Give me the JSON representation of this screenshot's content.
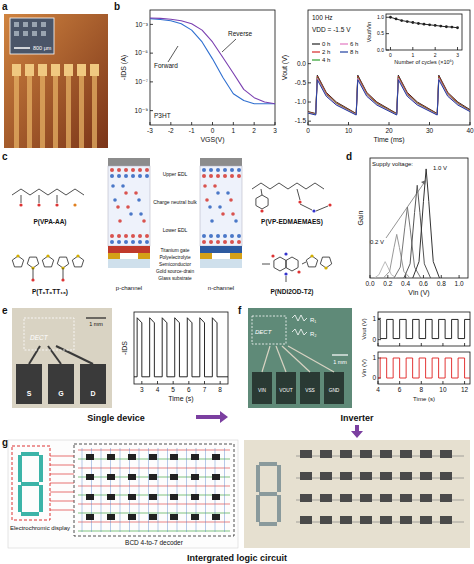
{
  "panel_labels": [
    "a",
    "b",
    "c",
    "d",
    "e",
    "f",
    "g"
  ],
  "photo_a": {
    "scale_bar": "800 μm"
  },
  "chart_data": [
    {
      "type": "line",
      "x_label": "VGS(V)",
      "y_label": "-IDS (A)",
      "log": "y",
      "xlim": [
        -3,
        3
      ],
      "xticks": [
        -3,
        -2,
        -1,
        0,
        1,
        2,
        3
      ],
      "ylim": [
        1e-10,
        0.01
      ],
      "yticks": [
        {
          "value": 0.001,
          "label": "10⁻³"
        },
        {
          "value": 1e-05,
          "label": "10⁻⁵"
        },
        {
          "value": 1e-07,
          "label": "10⁻⁷"
        },
        {
          "value": 1e-09,
          "label": "10⁻⁹"
        }
      ],
      "annotations": [
        "P3HT"
      ],
      "x": [
        -3,
        -2.5,
        -2,
        -1.5,
        -1,
        -0.5,
        0,
        0.5,
        1,
        1.5,
        2,
        2.5,
        3
      ],
      "series": [
        {
          "name": "Forward",
          "color": "#2f6fd0",
          "values": [
            0.0025,
            0.0022,
            0.0018,
            0.0011,
            0.0004,
            6e-05,
            4e-06,
            2e-07,
            1.5e-08,
            5e-09,
            3e-09,
            3e-09,
            3e-09
          ]
        },
        {
          "name": "Reverse",
          "color": "#7a3fb0",
          "values": [
            0.0028,
            0.0026,
            0.0023,
            0.0018,
            0.0011,
            0.0004,
            6e-05,
            5e-06,
            4e-07,
            3e-08,
            8e-09,
            4e-09,
            3e-09
          ]
        }
      ]
    },
    {
      "type": "line",
      "x_label": "Time (ms)",
      "y_label": "Vout (V)",
      "xlim": [
        0,
        40
      ],
      "xticks": [
        0,
        10,
        20,
        30,
        40
      ],
      "ylim": [
        -1.6,
        1.4
      ],
      "yticks": [
        -1.5,
        {
          "value": -1,
          "label": "-1.0"
        },
        -0.5,
        {
          "value": 0,
          "label": "0.0"
        }
      ],
      "annotations": [
        "100 Hz",
        "VDD = -1.5 V"
      ],
      "legend": "upper left",
      "x": [
        0,
        1.9,
        2.3,
        4.5,
        7,
        11.9,
        12.3,
        14.5,
        17,
        21.9,
        22.3,
        24.5,
        27,
        31.9,
        32.3,
        34.5,
        37,
        40
      ],
      "series": [
        {
          "name": "0 h",
          "color": "#222222",
          "values": [
            -1.25,
            -1.3,
            -0.3,
            -0.75,
            -1.0,
            -1.3,
            -0.3,
            -0.75,
            -1.0,
            -1.3,
            -0.3,
            -0.75,
            -1.0,
            -1.3,
            -0.3,
            -0.75,
            -1.0,
            -1.2
          ]
        },
        {
          "name": "2 h",
          "color": "#d62728",
          "values": [
            -1.26,
            -1.31,
            -0.33,
            -0.77,
            -1.02,
            -1.31,
            -0.33,
            -0.77,
            -1.02,
            -1.31,
            -0.33,
            -0.77,
            -1.02,
            -1.31,
            -0.33,
            -0.77,
            -1.02,
            -1.22
          ]
        },
        {
          "name": "4 h",
          "color": "#2ca02c",
          "values": [
            -1.27,
            -1.32,
            -0.36,
            -0.8,
            -1.04,
            -1.32,
            -0.36,
            -0.8,
            -1.04,
            -1.32,
            -0.36,
            -0.8,
            -1.04,
            -1.32,
            -0.36,
            -0.8,
            -1.04,
            -1.23
          ]
        },
        {
          "name": "6 h",
          "color": "#e377c2",
          "values": [
            -1.28,
            -1.33,
            -0.38,
            -0.82,
            -1.06,
            -1.33,
            -0.38,
            -0.82,
            -1.06,
            -1.33,
            -0.38,
            -0.82,
            -1.06,
            -1.33,
            -0.38,
            -0.82,
            -1.06,
            -1.24
          ]
        },
        {
          "name": "8 h",
          "color": "#1f3f9f",
          "values": [
            -1.29,
            -1.34,
            -0.42,
            -0.85,
            -1.08,
            -1.34,
            -0.42,
            -0.85,
            -1.08,
            -1.34,
            -0.42,
            -0.85,
            -1.08,
            -1.34,
            -0.42,
            -0.85,
            -1.08,
            -1.25
          ]
        }
      ]
    },
    {
      "type": "line",
      "marker": "circle",
      "color": "#222222",
      "x_label": "Number of cycles (×10⁶)",
      "y_label": "Vout/Vin",
      "xlim": [
        -0.2,
        3.2
      ],
      "xticks": [
        0,
        1,
        2,
        3
      ],
      "ylim": [
        0,
        1.1
      ],
      "yticks": [
        {
          "value": 0,
          "label": "0.0"
        },
        0.5,
        {
          "value": 1,
          "label": "1.0"
        }
      ],
      "x": [
        0,
        0.25,
        0.5,
        0.75,
        1,
        1.25,
        1.5,
        1.75,
        2,
        2.25,
        2.5,
        2.75,
        3
      ],
      "values": [
        1.0,
        0.95,
        0.9,
        0.87,
        0.84,
        0.81,
        0.79,
        0.77,
        0.75,
        0.73,
        0.71,
        0.7,
        0.68
      ]
    },
    {
      "type": "line",
      "x_label": "Vin (V)",
      "y_label": "Gain",
      "tick_labels": "x",
      "xlim": [
        0,
        1.1
      ],
      "xticks": [
        {
          "value": 0,
          "label": "0.0"
        },
        0.2,
        0.4,
        0.6,
        0.8,
        {
          "value": 1,
          "label": "1.0"
        }
      ],
      "ylim": [
        0,
        11
      ],
      "annotations": [
        "Supply voltage:",
        "0.2 V",
        "1.0 V"
      ],
      "series": [
        {
          "color": "#bbbbbb",
          "x": [
            0.05,
            0.1,
            0.14,
            0.17,
            0.2,
            0.24,
            0.3
          ],
          "values": [
            0,
            0.3,
            1.0,
            1.5,
            1.0,
            0.3,
            0
          ]
        },
        {
          "color": "#999999",
          "x": [
            0.15,
            0.22,
            0.27,
            0.3,
            0.33,
            0.38,
            0.45
          ],
          "values": [
            0,
            0.6,
            2.8,
            4.0,
            2.8,
            0.6,
            0
          ]
        },
        {
          "color": "#777777",
          "x": [
            0.27,
            0.34,
            0.39,
            0.42,
            0.45,
            0.5,
            0.57
          ],
          "values": [
            0,
            1,
            4.6,
            6.5,
            4.6,
            1,
            0
          ]
        },
        {
          "color": "#555555",
          "x": [
            0.38,
            0.45,
            0.5,
            0.53,
            0.56,
            0.61,
            0.68
          ],
          "values": [
            0,
            1.3,
            6,
            8.5,
            6,
            1.3,
            0
          ]
        },
        {
          "color": "#333333",
          "x": [
            0.48,
            0.55,
            0.6,
            0.63,
            0.66,
            0.71,
            0.78
          ],
          "values": [
            0,
            1.5,
            7,
            10,
            7,
            1.5,
            0
          ]
        }
      ]
    },
    {
      "type": "line",
      "x_label": "Time (s)",
      "y_label": "-IDS",
      "tick_labels": "x",
      "color": "#111111",
      "xlim": [
        2.5,
        8.5
      ],
      "xticks": [
        3,
        4,
        5,
        6,
        7,
        8
      ],
      "ylim": [
        0,
        1
      ],
      "x": [
        2.5,
        2.7,
        2.7,
        3.0,
        3.0,
        3.5,
        3.5,
        3.8,
        3.8,
        4.3,
        4.3,
        4.6,
        4.6,
        5.1,
        5.1,
        5.4,
        5.4,
        5.9,
        5.9,
        6.2,
        6.2,
        6.7,
        6.7,
        7.0,
        7.0,
        7.5,
        7.5,
        7.8,
        7.8,
        8.5
      ],
      "values": [
        0.1,
        0.1,
        0.92,
        0.85,
        0.1,
        0.1,
        0.92,
        0.85,
        0.1,
        0.1,
        0.92,
        0.85,
        0.1,
        0.1,
        0.92,
        0.85,
        0.1,
        0.1,
        0.92,
        0.85,
        0.1,
        0.1,
        0.92,
        0.85,
        0.1,
        0.1,
        0.92,
        0.85,
        0.1,
        0.1
      ]
    },
    {
      "type": "line",
      "y_label": "Vout (V)",
      "tick_labels": "y",
      "color": "#111111",
      "xlim": [
        4,
        12.5
      ],
      "xticks": [
        4,
        6,
        8,
        10,
        12
      ],
      "ylim": [
        -0.3,
        1.3
      ],
      "yticks": [
        0,
        1
      ],
      "x": [
        4,
        4.2,
        4.2,
        4.8,
        4.8,
        5.4,
        5.4,
        6.0,
        6.0,
        6.6,
        6.6,
        7.2,
        7.2,
        7.8,
        7.8,
        8.4,
        8.4,
        9.0,
        9.0,
        9.6,
        9.6,
        10.2,
        10.2,
        10.8,
        10.8,
        11.4,
        11.4,
        12.0,
        12.0,
        12.5
      ],
      "values": [
        0.95,
        0.95,
        0.05,
        0.05,
        0.95,
        0.95,
        0.05,
        0.05,
        0.95,
        0.95,
        0.05,
        0.05,
        0.95,
        0.95,
        0.05,
        0.05,
        0.95,
        0.95,
        0.05,
        0.05,
        0.95,
        0.95,
        0.05,
        0.05,
        0.95,
        0.95,
        0.05,
        0.05,
        0.95,
        0.95
      ]
    },
    {
      "type": "line",
      "x_label": "Time (s)",
      "y_label": "Vin (V)",
      "color": "#e02020",
      "xlim": [
        4,
        12.5
      ],
      "xticks": [
        4,
        6,
        8,
        10,
        12
      ],
      "ylim": [
        -0.3,
        1.3
      ],
      "yticks": [
        0,
        1
      ],
      "x": [
        4,
        4.2,
        4.2,
        4.8,
        4.8,
        5.4,
        5.4,
        6.0,
        6.0,
        6.6,
        6.6,
        7.2,
        7.2,
        7.8,
        7.8,
        8.4,
        8.4,
        9.0,
        9.0,
        9.6,
        9.6,
        10.2,
        10.2,
        10.8,
        10.8,
        11.4,
        11.4,
        12.0,
        12.0,
        12.5
      ],
      "values": [
        0,
        0,
        1,
        1,
        0,
        0,
        1,
        1,
        0,
        0,
        1,
        1,
        0,
        0,
        1,
        1,
        0,
        0,
        1,
        1,
        0,
        0,
        1,
        1,
        0,
        0,
        1,
        1,
        0,
        0
      ]
    }
  ],
  "diagram_c": {
    "polymers": [
      "P(VPA-AA)",
      "P(T₀T₀TT₁₆)",
      "P(VP-EDMAEMAES)",
      "P(NDI2OD-T2)"
    ],
    "regions": [
      "Upper EDL",
      "Charge neutral bulk",
      "Lower EDL"
    ],
    "layers": [
      "Titanium gate",
      "Polyelectrolyte",
      "Semiconductor",
      "Gold source-drain",
      "Glass substrate"
    ],
    "channels": [
      "p-channel",
      "n-channel"
    ]
  },
  "photo_e": {
    "device": "DECT",
    "terminals": [
      "S",
      "G",
      "D"
    ],
    "scale_bar": "1 mm"
  },
  "photo_f": {
    "device": "DECT",
    "resistors": [
      "R₁",
      "R₂"
    ],
    "terminals": [
      "VIN",
      "VOUT",
      "VSS",
      "GND"
    ],
    "scale_bar": "1 mm"
  },
  "panel_g": {
    "display": "Electrochromic display",
    "decoder": "BCD 4-to-7 decoder"
  },
  "captions": [
    "Single device",
    "Inverter",
    "Intergrated logic circuit"
  ]
}
